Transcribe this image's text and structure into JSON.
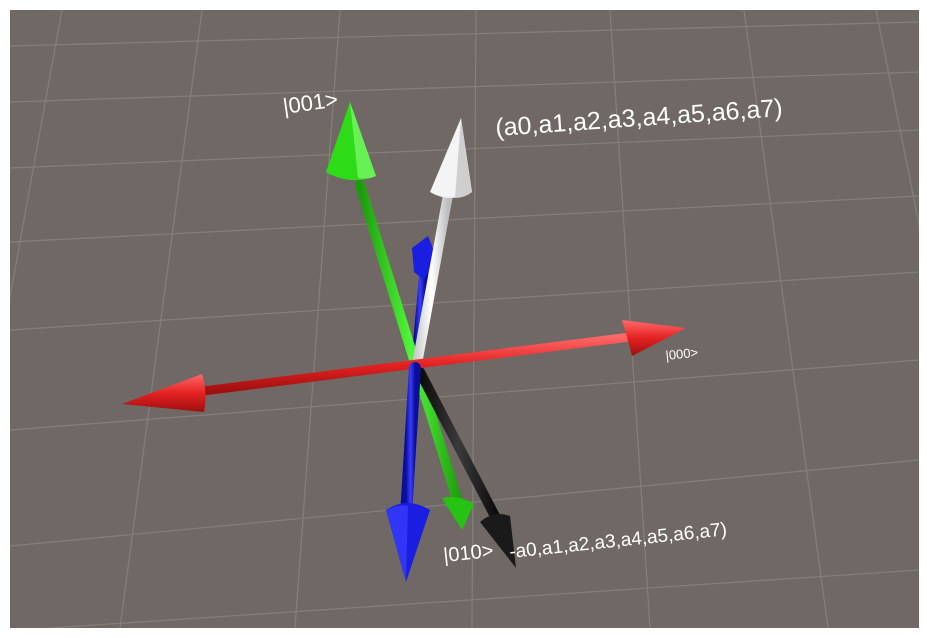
{
  "scene": {
    "background": "#6f6864",
    "grid_color": "#8a8480"
  },
  "labels": {
    "basis_001": "|001>",
    "state_a": "(a0,a1,a2,a3,a4,a5,a6,a7)",
    "basis_000": "|000>",
    "basis_010": "|010>",
    "state_neg": "-a0,a1,a2,a3,a4,a5,a6,a7)"
  },
  "colors": {
    "red": "#e52222",
    "green": "#2edb17",
    "blue": "#1a1ee0",
    "white": "#f4f4f4",
    "black": "#1a1a1a"
  }
}
